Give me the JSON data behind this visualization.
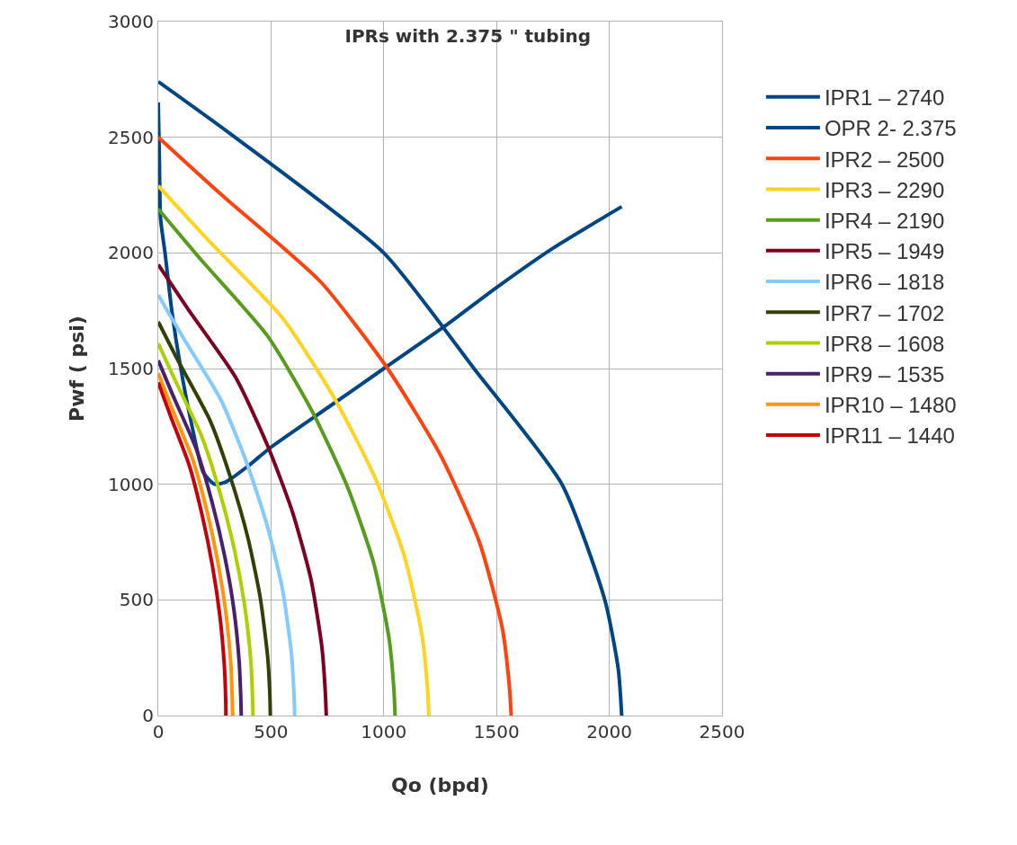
{
  "chart_data": {
    "type": "line",
    "title": "IPRs with 2.375 \" tubing",
    "xlabel": "Qo (bpd)",
    "ylabel": "Pwf ( psi)",
    "xlim": [
      0,
      2500
    ],
    "xticks": [
      0,
      500,
      1000,
      1500,
      2000,
      2500
    ],
    "ylim": [
      0,
      3000
    ],
    "yticks": [
      0,
      500,
      1000,
      1500,
      2000,
      2500,
      3000
    ],
    "grid": true,
    "legend": "right",
    "marker": "none",
    "line_style": "solid",
    "series": [
      {
        "name": "IPR1 – 2740",
        "color": "#004586",
        "x": [
          0,
          340,
          1000,
          1400,
          1790,
          1980,
          2040,
          2055
        ],
        "values": [
          2740,
          2500,
          2000,
          1500,
          1000,
          500,
          200,
          0
        ]
      },
      {
        "name": "OPR 2- 2.375",
        "color": "#004586",
        "x": [
          0,
          5,
          10,
          30,
          60,
          100,
          150,
          200,
          250,
          300,
          400,
          500,
          750,
          1000,
          1280,
          1500,
          1750,
          2055
        ],
        "values": [
          2650,
          2400,
          2150,
          2000,
          1750,
          1500,
          1250,
          1050,
          1000,
          1010,
          1080,
          1160,
          1330,
          1500,
          1690,
          1850,
          2020,
          2200
        ]
      },
      {
        "name": "IPR2 – 2500",
        "color": "#ff420e",
        "x": [
          0,
          282,
          720,
          1017,
          1252,
          1424,
          1526,
          1557,
          1565
        ],
        "values": [
          2500,
          2250,
          1875,
          1500,
          1125,
          750,
          375,
          125,
          0
        ]
      },
      {
        "name": "IPR3 – 2290",
        "color": "#ffd320",
        "x": [
          0,
          216,
          552,
          780,
          960,
          1092,
          1170,
          1194,
          1200
        ],
        "values": [
          2290,
          2061,
          1718,
          1374,
          1031,
          687,
          344,
          115,
          0
        ]
      },
      {
        "name": "IPR4 – 2190",
        "color": "#579d1c",
        "x": [
          0,
          189,
          483,
          683,
          840,
          956,
          1024,
          1045,
          1050
        ],
        "values": [
          2190,
          1971,
          1643,
          1314,
          986,
          657,
          329,
          110,
          0
        ]
      },
      {
        "name": "IPR5 – 1949",
        "color": "#7e0021",
        "x": [
          0,
          134,
          343,
          484,
          596,
          678,
          726,
          741,
          745
        ],
        "values": [
          1949,
          1754,
          1462,
          1169,
          877,
          585,
          292,
          97,
          0
        ]
      },
      {
        "name": "IPR6 – 1818",
        "color": "#83caff",
        "x": [
          0,
          109,
          278,
          393,
          484,
          551,
          590,
          602,
          605
        ],
        "values": [
          1818,
          1636,
          1364,
          1091,
          818,
          545,
          273,
          91,
          0
        ]
      },
      {
        "name": "IPR7 – 1702",
        "color": "#314004",
        "x": [
          0,
          89,
          229,
          323,
          398,
          452,
          485,
          495,
          497
        ],
        "values": [
          1702,
          1532,
          1277,
          1021,
          766,
          511,
          255,
          85,
          0
        ]
      },
      {
        "name": "IPR8 – 1608",
        "color": "#aecf00",
        "x": [
          0,
          76,
          193,
          273,
          336,
          382,
          410,
          418,
          420
        ],
        "values": [
          1608,
          1447,
          1206,
          965,
          724,
          482,
          241,
          80,
          0
        ]
      },
      {
        "name": "IPR9 – 1535",
        "color": "#4b1f6f",
        "x": [
          0,
          66,
          169,
          239,
          294,
          335,
          359,
          366,
          368
        ],
        "values": [
          1535,
          1382,
          1151,
          921,
          691,
          461,
          230,
          77,
          0
        ]
      },
      {
        "name": "IPR10 – 1480",
        "color": "#ff950e",
        "x": [
          0,
          59,
          152,
          215,
          264,
          300,
          322,
          328,
          330
        ],
        "values": [
          1480,
          1332,
          1110,
          888,
          666,
          444,
          222,
          74,
          0
        ]
      },
      {
        "name": "IPR11 – 1440",
        "color": "#c5000b",
        "x": [
          0,
          54,
          138,
          195,
          240,
          273,
          293,
          299,
          300
        ],
        "values": [
          1440,
          1296,
          1080,
          864,
          648,
          432,
          216,
          72,
          0
        ]
      }
    ]
  }
}
